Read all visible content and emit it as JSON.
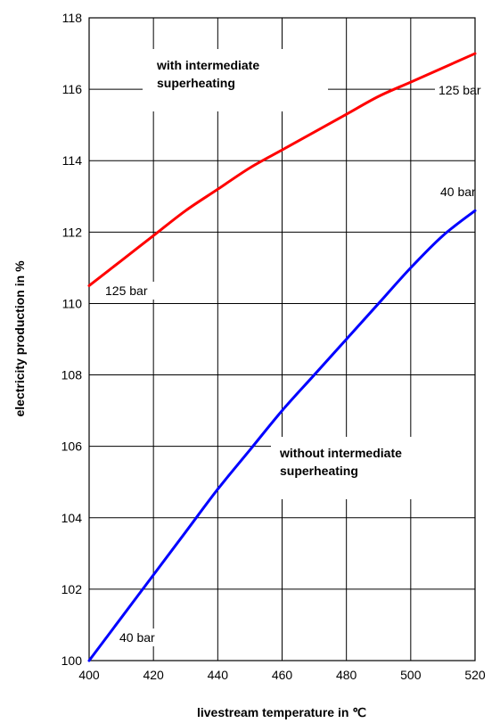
{
  "chart_data": {
    "type": "line",
    "title": "",
    "xlabel": "livestream temperature in ℃",
    "ylabel": "electricity production in %",
    "xlim": [
      400,
      520
    ],
    "ylim": [
      100,
      118
    ],
    "xticks": [
      400,
      420,
      440,
      460,
      480,
      500,
      520
    ],
    "yticks": [
      100,
      102,
      104,
      106,
      108,
      110,
      112,
      114,
      116,
      118
    ],
    "grid": true,
    "colors": {
      "with": "#ff0000",
      "without": "#0000ff"
    },
    "series": [
      {
        "key": "with",
        "x": [
          400,
          410,
          420,
          430,
          440,
          450,
          460,
          470,
          480,
          490,
          500,
          510,
          520
        ],
        "y": [
          110.5,
          111.2,
          111.9,
          112.6,
          113.2,
          113.8,
          114.3,
          114.8,
          115.3,
          115.8,
          116.2,
          116.6,
          117.0
        ]
      },
      {
        "key": "without",
        "x": [
          400,
          410,
          420,
          430,
          440,
          450,
          460,
          470,
          480,
          490,
          500,
          510,
          520
        ],
        "y": [
          100.0,
          101.2,
          102.4,
          103.6,
          104.8,
          105.9,
          107.0,
          108.0,
          109.0,
          110.0,
          111.0,
          111.9,
          112.6
        ]
      }
    ],
    "annotations": {
      "with_line1": "with intermediate",
      "with_line2": "superheating",
      "without_line1": "without intermediate",
      "without_line2": "superheating",
      "red_start": "125 bar",
      "red_end": "125 bar",
      "blue_start": "40 bar",
      "blue_end": "40 bar"
    }
  }
}
